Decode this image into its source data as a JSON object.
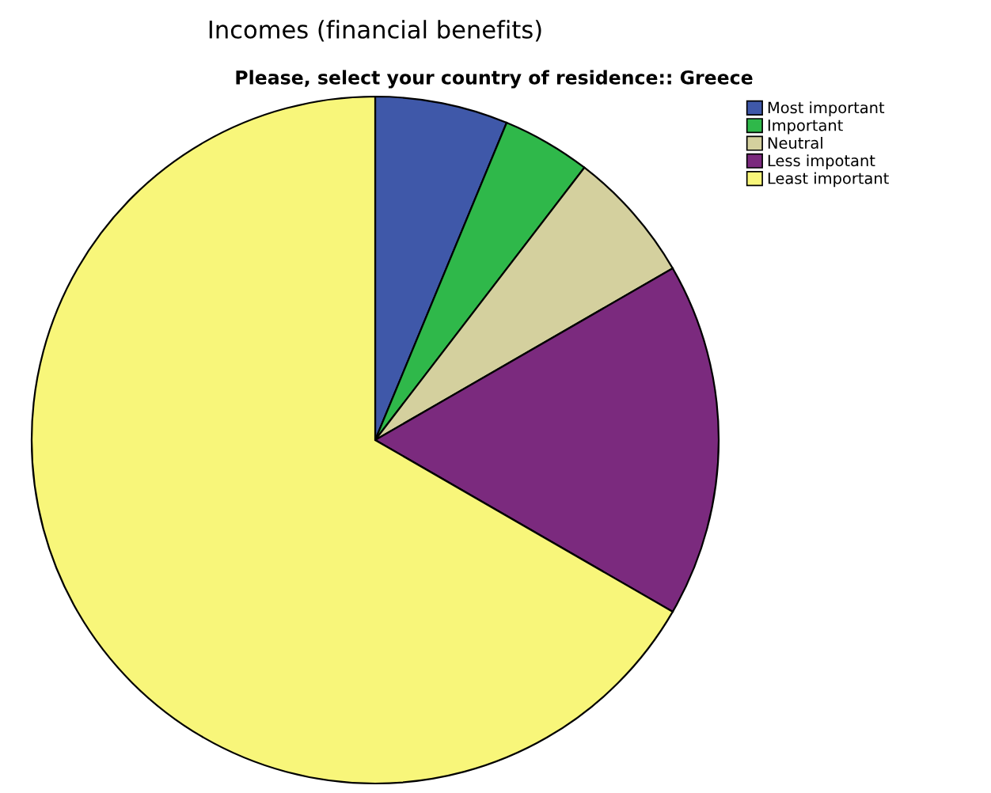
{
  "chart_data": {
    "type": "pie",
    "title": "Incomes (financial benefits)",
    "subtitle": "Please, select your country of residence:: Greece",
    "categories": [
      "Most important",
      "Important",
      "Neutral",
      "Less impotant",
      "Least important"
    ],
    "values": [
      6.25,
      4.17,
      6.25,
      16.66,
      66.67
    ],
    "colors": [
      "#3f58a9",
      "#2fb84a",
      "#d4d09e",
      "#7b2a7e",
      "#f8f67a"
    ],
    "legend": "top right"
  }
}
